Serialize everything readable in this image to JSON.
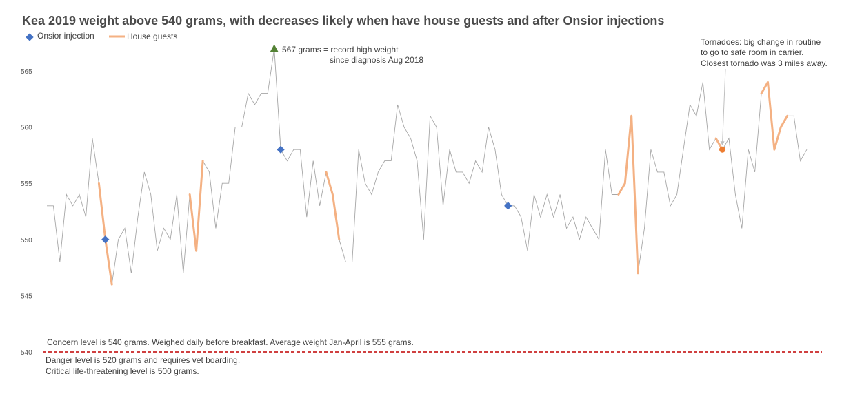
{
  "chart_data": {
    "type": "line",
    "title": "Kea 2019 weight above 540 grams, with decreases likely when have house guests and after Onsior injections",
    "ylim": [
      540,
      567
    ],
    "yticks": [
      540,
      545,
      550,
      555,
      560,
      565
    ],
    "grid": false,
    "legend_position": "top-left",
    "legend": [
      {
        "label": "Onsior injection",
        "marker": "diamond",
        "color": "#4472c4"
      },
      {
        "label": "House guests",
        "marker": "line",
        "color": "#f4b183"
      }
    ],
    "series": [
      {
        "values": [
          553,
          553,
          548,
          554,
          553,
          554,
          552,
          559,
          555,
          550,
          546,
          550,
          551,
          547,
          552,
          556,
          554,
          549,
          551,
          550,
          554,
          547,
          554,
          549,
          557,
          556,
          551,
          555,
          555,
          560,
          560,
          563,
          562,
          563,
          563,
          567,
          558,
          557,
          558,
          558,
          552,
          557,
          553,
          556,
          554,
          550,
          548,
          548,
          558,
          555,
          554,
          556,
          557,
          557,
          562,
          560,
          559,
          557,
          550,
          561,
          560,
          553,
          558,
          556,
          556,
          555,
          557,
          556,
          560,
          558,
          554,
          553,
          553,
          552,
          549,
          554,
          552,
          554,
          552,
          554,
          551,
          552,
          550,
          552,
          551,
          550,
          558,
          554,
          554,
          555,
          561,
          547,
          551,
          558,
          556,
          556,
          553,
          554,
          558,
          562,
          561,
          564,
          558,
          559,
          558,
          559,
          554,
          551,
          558,
          556,
          563,
          564,
          558,
          560,
          561,
          561,
          557,
          558
        ]
      }
    ],
    "house_guest_ranges": [
      [
        8,
        10
      ],
      [
        22,
        23
      ],
      [
        23,
        24
      ],
      [
        43,
        45
      ],
      [
        88,
        91
      ],
      [
        103,
        104
      ],
      [
        110,
        114
      ]
    ],
    "onsior_injections": [
      9,
      36,
      71
    ],
    "record_high_index": 35,
    "tornado_index": 104,
    "threshold": {
      "value": 540,
      "color": "#c00000"
    },
    "colors": {
      "line": "#a6a6a6",
      "house_guests": "#f4b183",
      "onsior": "#4472c4",
      "record": "#548235",
      "tornado": "#ed7d31"
    }
  },
  "legend": {
    "onsior": "Onsior injection",
    "guests": "House guests"
  },
  "annotations": {
    "record_line1": "567 grams = record high weight",
    "record_line2": "since diagnosis Aug 2018",
    "tornado_line1": "Tornadoes: big change in routine",
    "tornado_line2": "to go to safe room in carrier.",
    "tornado_line3": "Closest tornado was 3 miles away.",
    "concern": "Concern level is 540 grams. Weighed daily before breakfast. Average weight Jan-April is 555 grams.",
    "danger": "Danger level is 520 grams and requires vet boarding.",
    "critical": "Critical life-threatening level is 500 grams."
  }
}
